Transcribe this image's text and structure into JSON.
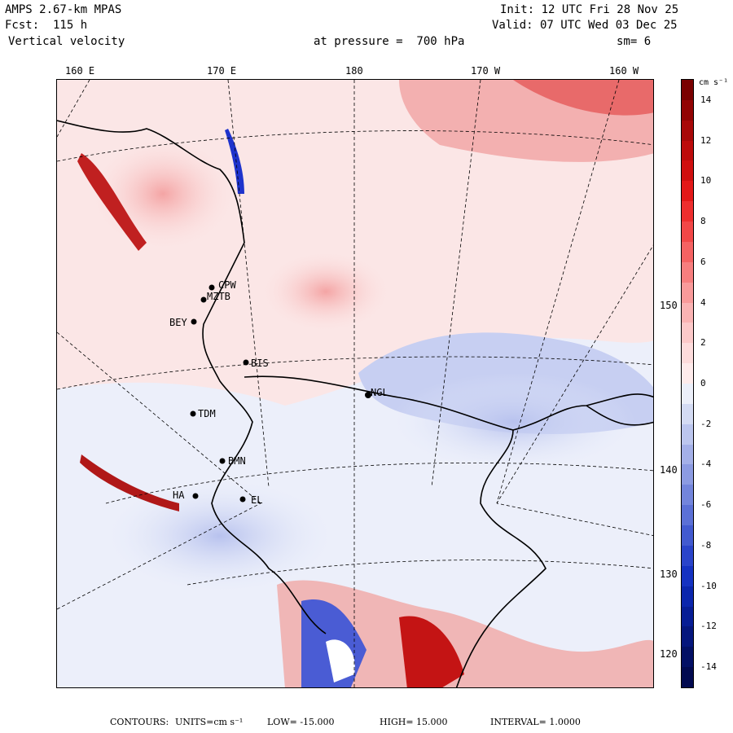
{
  "header": {
    "model": "AMPS 2.67-km MPAS",
    "fcst": "Fcst:  115 h",
    "variable": "Vertical velocity",
    "init": "Init: 12 UTC Fri 28 Nov 25",
    "valid": "Valid: 07 UTC Wed 03 Dec 25",
    "level": "at pressure =  700 hPa",
    "smoothing": "sm= 6"
  },
  "colorbar": {
    "units": "cm s⁻¹",
    "labels": [
      "14",
      "12",
      "10",
      "8",
      "6",
      "4",
      "2",
      "0",
      "-2",
      "-4",
      "-6",
      "-8",
      "-10",
      "-12",
      "-14"
    ],
    "colors": [
      "#ffffff",
      "#f0f0ff",
      "#d6dcf7",
      "#b8c2f0",
      "#9aa6ea",
      "#7b8ae3",
      "#5a6bdc",
      "#3a4ed5",
      "#1e33cc",
      "#0e22b8",
      "#081898",
      "#06127c",
      "#050d62",
      "#03094c",
      "#020637",
      "#8b0f0f",
      "#a31212",
      "#c01414",
      "#d81818",
      "#ea2a2a",
      "#f04848",
      "#f46868",
      "#f78888",
      "#f9a6a6",
      "#fbc2c2",
      "#fdd8d8",
      "#feeaea"
    ],
    "upper_colors": [
      "#7a0000",
      "#920303",
      "#a80808",
      "#bd0b0b",
      "#d00f0f",
      "#e31818",
      "#ee2e2e",
      "#f24747",
      "#f56262",
      "#f77e7e",
      "#f99a9a",
      "#fab3b3",
      "#fcc9c9",
      "#fddcdc",
      "#feebeb"
    ],
    "lower_colors": [
      "#eceff9",
      "#d4dbf3",
      "#bcc6ee",
      "#a4b0e8",
      "#8c9be2",
      "#7385dc",
      "#5b70d6",
      "#425ad0",
      "#2a44ca",
      "#1532c2",
      "#0b26ad",
      "#071d95",
      "#05167d",
      "#031065",
      "#020a50"
    ]
  },
  "map": {
    "lon_labels": [
      "160 E",
      "170 E",
      "180",
      "170 W",
      "160 W"
    ],
    "lat_labels": [
      "150 W",
      "140 W",
      "130 W",
      "120 W"
    ],
    "stations": [
      "CPW",
      "MZTB",
      "BEY",
      "BIS",
      "NGL",
      "TDM",
      "BMN",
      "HA",
      "EL"
    ]
  },
  "footer": {
    "contours": "CONTOURS:",
    "units": "UNITS=cm s⁻¹",
    "low": "LOW= -15.000",
    "high": "HIGH= 15.000",
    "interval": "INTERVAL=  1.0000"
  }
}
